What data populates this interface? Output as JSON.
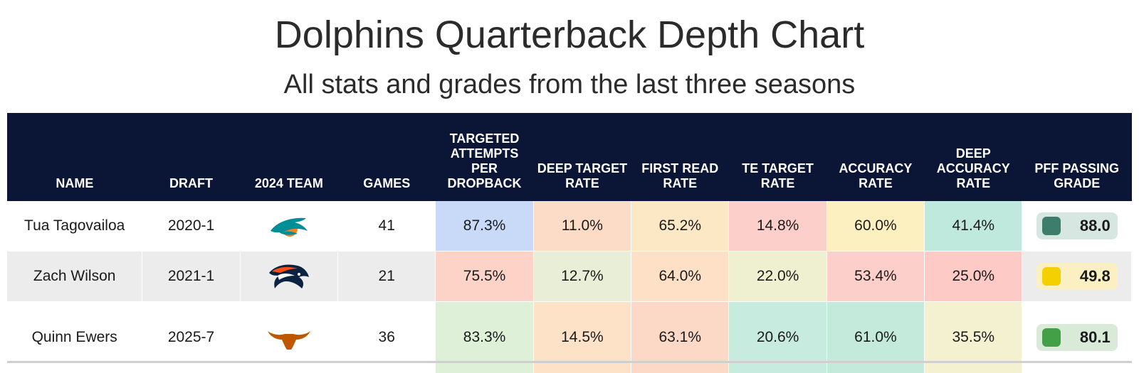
{
  "header": {
    "title": "Dolphins Quarterback Depth Chart",
    "subtitle": "All stats and grades from the last three seasons"
  },
  "columns": [
    "NAME",
    "DRAFT",
    "2024 TEAM",
    "GAMES",
    "TARGETED ATTEMPTS PER DROPBACK",
    "DEEP TARGET RATE",
    "FIRST READ RATE",
    "TE TARGET RATE",
    "ACCURACY RATE",
    "DEEP ACCURACY RATE",
    "PFF PASSING GRADE"
  ],
  "chart_data": {
    "type": "table",
    "title": "Dolphins Quarterback Depth Chart",
    "subtitle": "All stats and grades from the last three seasons",
    "rows": [
      {
        "name": "Tua Tagovailoa",
        "draft": "2020-1",
        "team_logo": "dolphins-logo-icon",
        "games": "41",
        "metrics": [
          "87.3%",
          "11.0%",
          "65.2%",
          "14.8%",
          "60.0%",
          "41.4%"
        ],
        "metric_colors": [
          "#c8daf8",
          "#fcdcc6",
          "#fde8c6",
          "#fdcfca",
          "#fdf0c0",
          "#bfe9dc"
        ],
        "grade": "88.0",
        "grade_bg": "#d6e6e0",
        "grade_swatch": "#3d7d6c"
      },
      {
        "name": "Zach Wilson",
        "draft": "2021-1",
        "team_logo": "broncos-logo-icon",
        "games": "21",
        "metrics": [
          "75.5%",
          "12.7%",
          "64.0%",
          "22.0%",
          "53.4%",
          "25.0%"
        ],
        "metric_colors": [
          "#fdd3c8",
          "#e8efd6",
          "#fde0c6",
          "#eff0d0",
          "#fdcfca",
          "#fdcac6"
        ],
        "grade": "49.8",
        "grade_bg": "#fbf0c2",
        "grade_swatch": "#f5d000"
      },
      {
        "name": "Quinn Ewers",
        "draft": "2025-7",
        "team_logo": "longhorns-logo-icon",
        "games": "36",
        "metrics": [
          "83.3%",
          "14.5%",
          "63.1%",
          "20.6%",
          "61.0%",
          "35.5%"
        ],
        "metric_colors": [
          "#dff0d8",
          "#fde2c8",
          "#fcd9c7",
          "#c8ebe0",
          "#c3eadb",
          "#f3f1d0"
        ],
        "grade": "80.1",
        "grade_bg": "#d9ead8",
        "grade_swatch": "#43a047"
      }
    ]
  }
}
